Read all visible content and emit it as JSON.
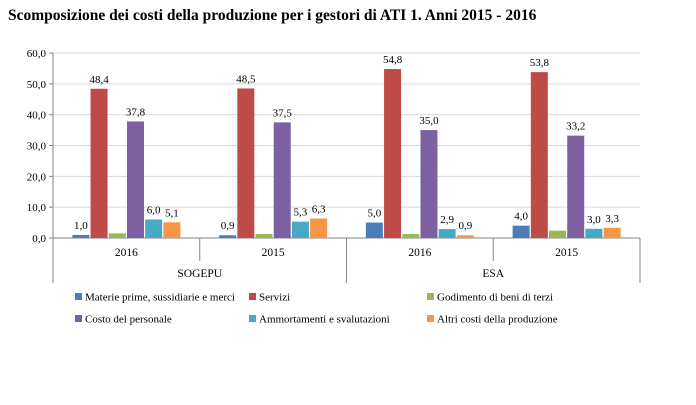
{
  "chart_data": {
    "type": "bar",
    "title": "Scomposizione dei costi della produzione per i gestori di ATI 1. Anni 2015 - 2016",
    "ylim": [
      0,
      60
    ],
    "yticks": [
      "0,0",
      "10,0",
      "20,0",
      "30,0",
      "40,0",
      "50,0",
      "60,0"
    ],
    "grid": true,
    "legend_position": "bottom",
    "groups": [
      {
        "label": "SOGEPU",
        "categories": [
          "2016",
          "2015"
        ]
      },
      {
        "label": "ESA",
        "categories": [
          "2016",
          "2015"
        ]
      }
    ],
    "categories": [
      "2016",
      "2015",
      "2016",
      "2015"
    ],
    "series": [
      {
        "name": "Materie prime, sussidiarie e merci",
        "color": "#4A7EBB",
        "values": [
          1.0,
          0.9,
          5.0,
          4.0
        ],
        "labels": [
          "1,0",
          "0,9",
          "5,0",
          "4,0"
        ]
      },
      {
        "name": "Servizi",
        "color": "#BE4B48",
        "values": [
          48.4,
          48.5,
          54.8,
          53.8
        ],
        "labels": [
          "48,4",
          "48,5",
          "54,8",
          "53,8"
        ]
      },
      {
        "name": "Godimento di beni di terzi",
        "color": "#98B954",
        "values": [
          1.5,
          1.3,
          1.3,
          2.4
        ],
        "labels": [
          "",
          "",
          "",
          ""
        ]
      },
      {
        "name": "Costo del personale",
        "color": "#7D60A0",
        "values": [
          37.8,
          37.5,
          35.0,
          33.2
        ],
        "labels": [
          "37,8",
          "37,5",
          "35,0",
          "33,2"
        ]
      },
      {
        "name": "Ammortamenti e svalutazioni",
        "color": "#46AAC5",
        "values": [
          6.0,
          5.3,
          2.9,
          3.0
        ],
        "labels": [
          "6,0",
          "5,3",
          "2,9",
          "3,0"
        ]
      },
      {
        "name": "Altri costi della produzione",
        "color": "#F79646",
        "values": [
          5.1,
          6.3,
          0.9,
          3.3
        ],
        "labels": [
          "5,1",
          "6,3",
          "0,9",
          "3,3"
        ]
      }
    ]
  }
}
